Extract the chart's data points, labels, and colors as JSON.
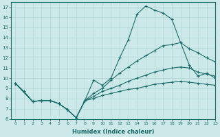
{
  "xlabel": "Humidex (Indice chaleur)",
  "bg_color": "#cde8e8",
  "grid_color": "#b0d8d8",
  "line_color": "#1a6b6b",
  "xlim": [
    -0.5,
    23
  ],
  "ylim": [
    6,
    17.5
  ],
  "xticks": [
    0,
    1,
    2,
    3,
    4,
    5,
    6,
    7,
    8,
    9,
    10,
    11,
    12,
    13,
    14,
    15,
    16,
    17,
    18,
    19,
    20,
    21,
    22,
    23
  ],
  "yticks": [
    6,
    7,
    8,
    9,
    10,
    11,
    12,
    13,
    14,
    15,
    16,
    17
  ],
  "line1_x": [
    0,
    1,
    2,
    3,
    4,
    5,
    6,
    7,
    8,
    9,
    10,
    11,
    12,
    13,
    14,
    15,
    16,
    17,
    18,
    19,
    20,
    21,
    22,
    23
  ],
  "line1_y": [
    9.5,
    8.7,
    7.7,
    7.8,
    7.8,
    7.5,
    6.9,
    6.1,
    7.8,
    9.8,
    9.3,
    10.0,
    12.0,
    13.8,
    16.3,
    17.1,
    16.7,
    16.4,
    15.8,
    13.5,
    11.3,
    10.2,
    10.5,
    10.0
  ],
  "line2_x": [
    0,
    2,
    3,
    4,
    5,
    6,
    7,
    8,
    9,
    10,
    11,
    12,
    13,
    14,
    15,
    16,
    17,
    18,
    19,
    20,
    21,
    22,
    23
  ],
  "line2_y": [
    9.5,
    7.7,
    7.8,
    7.8,
    7.5,
    6.9,
    6.1,
    7.8,
    8.5,
    9.0,
    9.8,
    10.5,
    11.1,
    11.7,
    12.2,
    12.7,
    13.2,
    13.3,
    13.5,
    12.9,
    12.5,
    12.0,
    11.6
  ],
  "line3_x": [
    0,
    2,
    3,
    4,
    5,
    6,
    7,
    8,
    9,
    10,
    11,
    12,
    13,
    14,
    15,
    16,
    17,
    18,
    19,
    20,
    21,
    22,
    23
  ],
  "line3_y": [
    9.5,
    7.7,
    7.8,
    7.8,
    7.5,
    6.9,
    6.1,
    7.8,
    8.2,
    8.7,
    9.0,
    9.3,
    9.7,
    10.0,
    10.3,
    10.6,
    10.8,
    11.0,
    11.1,
    11.0,
    10.6,
    10.4,
    10.2
  ],
  "line4_x": [
    0,
    2,
    3,
    4,
    5,
    6,
    7,
    8,
    9,
    10,
    11,
    12,
    13,
    14,
    15,
    16,
    17,
    18,
    19,
    20,
    21,
    22,
    23
  ],
  "line4_y": [
    9.5,
    7.7,
    7.8,
    7.8,
    7.5,
    6.9,
    6.1,
    7.8,
    8.0,
    8.3,
    8.5,
    8.7,
    8.9,
    9.0,
    9.2,
    9.4,
    9.5,
    9.6,
    9.7,
    9.6,
    9.5,
    9.4,
    9.3
  ]
}
